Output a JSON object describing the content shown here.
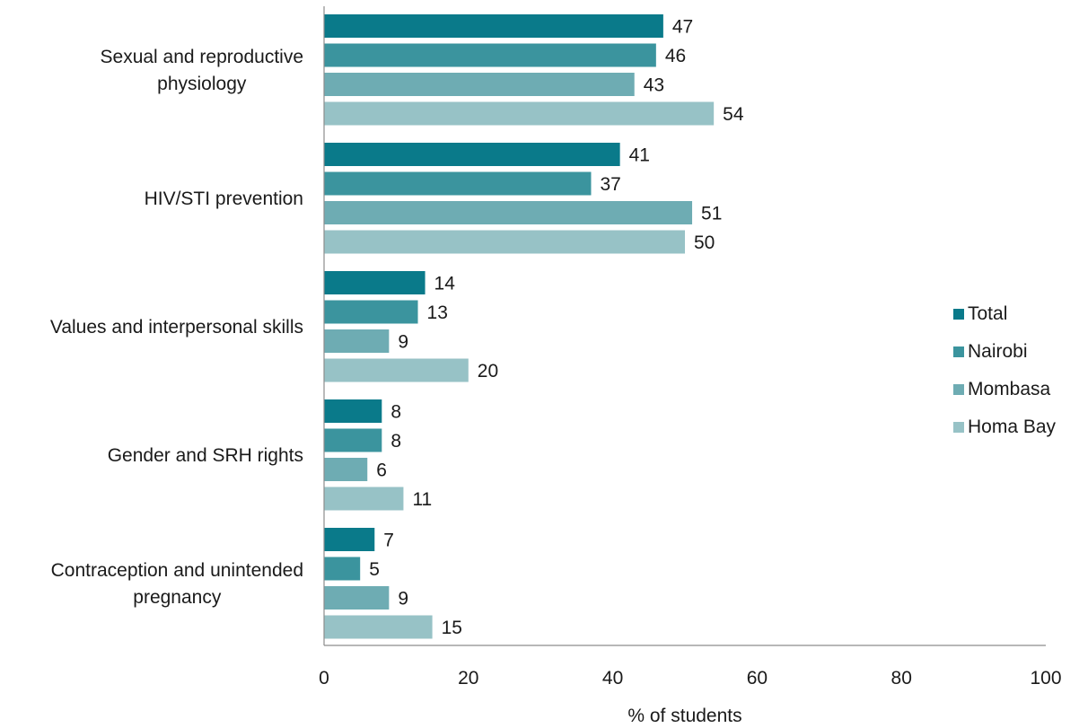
{
  "chart_data": {
    "type": "bar",
    "orientation": "horizontal",
    "categories": [
      [
        "Sexual and reproductive",
        "physiology"
      ],
      [
        "HIV/STI prevention"
      ],
      [
        "Values and interpersonal skills"
      ],
      [
        "Gender and SRH rights"
      ],
      [
        "Contraception and unintended",
        "pregnancy"
      ]
    ],
    "series": [
      {
        "name": "Total",
        "color": "#0a7a8a",
        "values": [
          47,
          41,
          14,
          8,
          7
        ]
      },
      {
        "name": "Nairobi",
        "color": "#3b949e",
        "values": [
          46,
          37,
          13,
          8,
          5
        ]
      },
      {
        "name": "Mombasa",
        "color": "#6eacb3",
        "values": [
          43,
          51,
          9,
          6,
          9
        ]
      },
      {
        "name": "Homa Bay",
        "color": "#97c2c6",
        "values": [
          54,
          50,
          20,
          11,
          15
        ]
      }
    ],
    "xlabel": "% of students",
    "ylabel": "",
    "xlim": [
      0,
      100
    ],
    "xticks": [
      0,
      20,
      40,
      60,
      80,
      100
    ],
    "legend_position": "right",
    "grid": false
  }
}
